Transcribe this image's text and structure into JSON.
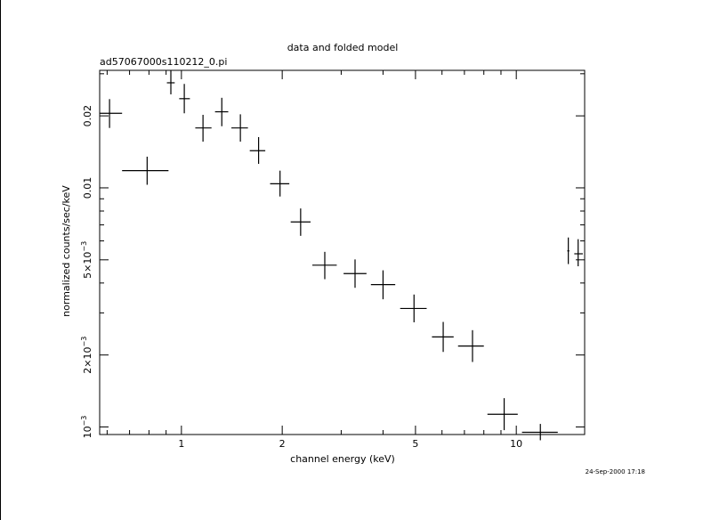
{
  "chart_data": {
    "type": "scatter",
    "title": "data and folded model",
    "subtitle": "ad57067000s110212_0.pi",
    "xlabel": "channel energy (keV)",
    "ylabel": "normalized counts/sec/keV",
    "xscale": "log",
    "yscale": "log",
    "xlim": [
      0.57,
      16.0
    ],
    "ylim": [
      0.00093,
      0.031
    ],
    "timestamp": "24-Sep-2000 17:18",
    "xticks": [
      {
        "value": 1,
        "label": "1"
      },
      {
        "value": 2,
        "label": "2"
      },
      {
        "value": 5,
        "label": "5"
      },
      {
        "value": 10,
        "label": "10"
      }
    ],
    "yticks": [
      {
        "value": 0.001,
        "label": "10⁻³",
        "mantissa": "10",
        "exp": "−3"
      },
      {
        "value": 0.002,
        "label": "2×10⁻³",
        "mantissa": "2×10",
        "exp": "−3"
      },
      {
        "value": 0.005,
        "label": "5×10⁻³",
        "mantissa": "5×10",
        "exp": "−3"
      },
      {
        "value": 0.01,
        "label": "0.01"
      },
      {
        "value": 0.02,
        "label": "0.02"
      }
    ],
    "series": [
      {
        "points": [
          {
            "x": 0.61,
            "y": 0.0205,
            "xlo": 0.57,
            "xhi": 0.665,
            "ylo": 0.0178,
            "yhi": 0.0235
          },
          {
            "x": 0.79,
            "y": 0.0118,
            "xlo": 0.665,
            "xhi": 0.915,
            "ylo": 0.0103,
            "yhi": 0.0135
          },
          {
            "x": 0.93,
            "y": 0.0275,
            "xlo": 0.905,
            "xhi": 0.955,
            "ylo": 0.0246,
            "yhi": 0.0309
          },
          {
            "x": 1.02,
            "y": 0.0236,
            "xlo": 0.985,
            "xhi": 1.06,
            "ylo": 0.0205,
            "yhi": 0.0272
          },
          {
            "x": 1.16,
            "y": 0.0178,
            "xlo": 1.1,
            "xhi": 1.23,
            "ylo": 0.0156,
            "yhi": 0.0202
          },
          {
            "x": 1.32,
            "y": 0.0208,
            "xlo": 1.26,
            "xhi": 1.38,
            "ylo": 0.0181,
            "yhi": 0.0238
          },
          {
            "x": 1.5,
            "y": 0.0178,
            "xlo": 1.41,
            "xhi": 1.58,
            "ylo": 0.0156,
            "yhi": 0.0203
          },
          {
            "x": 1.7,
            "y": 0.0143,
            "xlo": 1.6,
            "xhi": 1.78,
            "ylo": 0.0126,
            "yhi": 0.0163
          },
          {
            "x": 1.97,
            "y": 0.0104,
            "xlo": 1.84,
            "xhi": 2.1,
            "ylo": 0.0092,
            "yhi": 0.0118
          },
          {
            "x": 2.27,
            "y": 0.0072,
            "xlo": 2.12,
            "xhi": 2.43,
            "ylo": 0.0063,
            "yhi": 0.0082
          },
          {
            "x": 2.68,
            "y": 0.00475,
            "xlo": 2.46,
            "xhi": 2.91,
            "ylo": 0.00415,
            "yhi": 0.0054
          },
          {
            "x": 3.3,
            "y": 0.00438,
            "xlo": 3.05,
            "xhi": 3.57,
            "ylo": 0.00382,
            "yhi": 0.00502
          },
          {
            "x": 4.0,
            "y": 0.00394,
            "xlo": 3.68,
            "xhi": 4.35,
            "ylo": 0.00342,
            "yhi": 0.00452
          },
          {
            "x": 4.95,
            "y": 0.00313,
            "xlo": 4.5,
            "xhi": 5.4,
            "ylo": 0.00274,
            "yhi": 0.00358
          },
          {
            "x": 6.05,
            "y": 0.00238,
            "xlo": 5.6,
            "xhi": 6.5,
            "ylo": 0.00206,
            "yhi": 0.00275
          },
          {
            "x": 7.4,
            "y": 0.00218,
            "xlo": 6.7,
            "xhi": 8.0,
            "ylo": 0.00187,
            "yhi": 0.00254
          },
          {
            "x": 9.2,
            "y": 0.00113,
            "xlo": 8.2,
            "xhi": 10.1,
            "ylo": 0.00097,
            "yhi": 0.00132
          },
          {
            "x": 11.8,
            "y": 0.00095,
            "xlo": 10.4,
            "xhi": 13.3,
            "ylo": 0.00088,
            "yhi": 0.00103
          },
          {
            "x": 14.3,
            "y": 0.00545,
            "xlo": 14.2,
            "xhi": 14.4,
            "ylo": 0.0048,
            "yhi": 0.0062
          },
          {
            "x": 15.3,
            "y": 0.0053,
            "xlo": 14.9,
            "xhi": 15.8,
            "ylo": 0.0047,
            "yhi": 0.0061
          }
        ]
      }
    ]
  }
}
